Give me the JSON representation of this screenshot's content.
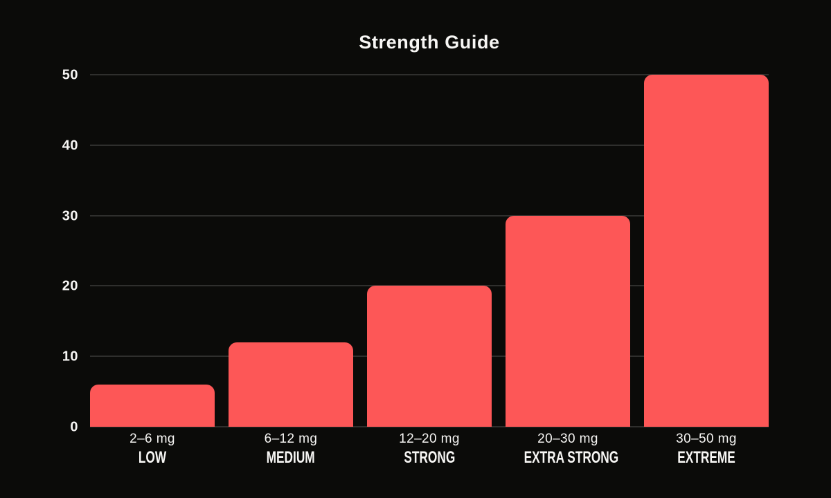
{
  "chart_data": {
    "type": "bar",
    "title": "Strength Guide",
    "categories": [
      "2–6 mg",
      "6–12 mg",
      "12–20 mg",
      "20–30 mg",
      "30–50 mg"
    ],
    "strength_labels": [
      "LOW",
      "MEDIUM",
      "STRONG",
      "EXTRA STRONG",
      "EXTREME"
    ],
    "values": [
      6,
      12,
      20,
      30,
      50
    ],
    "yticks": [
      0,
      10,
      20,
      30,
      40,
      50
    ],
    "ylim": [
      0,
      50
    ],
    "xlabel": "",
    "ylabel": "",
    "grid": "horizontal",
    "legend": "none",
    "colors": {
      "background": "#0b0b09",
      "bar": "#fd5757",
      "gridline": "#2f2f2d",
      "text": "#f7f6f4"
    }
  }
}
